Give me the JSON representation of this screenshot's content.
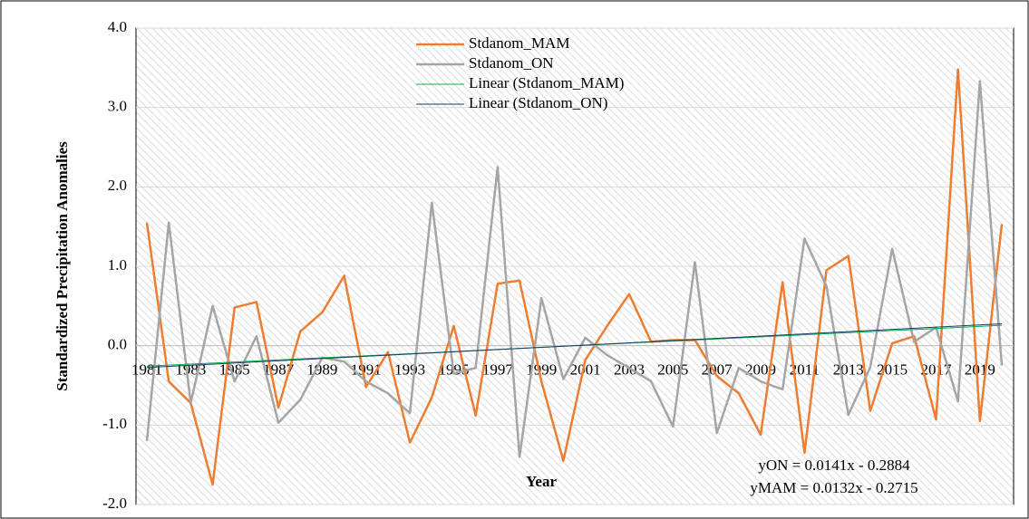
{
  "chart_data": {
    "type": "line",
    "y_label": "Standardized Precipitation Anomalies",
    "x_label": "Year",
    "categories": [
      "1981",
      null,
      "1983",
      null,
      "1985",
      null,
      "1987",
      null,
      "1989",
      null,
      "1991",
      null,
      "1993",
      null,
      "1995",
      null,
      "1997",
      null,
      "1999",
      null,
      "2001",
      null,
      "2003",
      null,
      "2005",
      null,
      "2007",
      null,
      "2009",
      null,
      "2011",
      null,
      "2013",
      null,
      "2015",
      null,
      "2017",
      null,
      "2019",
      null
    ],
    "series": [
      {
        "name": "Stdanom_MAM",
        "color": "#ed7d31",
        "values": [
          1.55,
          -0.45,
          -0.72,
          -1.75,
          0.48,
          0.55,
          -0.78,
          0.18,
          0.42,
          0.88,
          -0.52,
          -0.08,
          -1.22,
          -0.65,
          0.25,
          -0.88,
          0.78,
          0.82,
          -0.45,
          -1.45,
          -0.18,
          0.25,
          0.65,
          0.05,
          0.07,
          0.07,
          -0.38,
          -0.6,
          -1.12,
          0.8,
          -1.35,
          0.95,
          1.13,
          -0.82,
          0.03,
          0.12,
          -0.93,
          3.48,
          -0.95,
          1.53
        ]
      },
      {
        "name": "Stdanom_ON",
        "color": "#a5a5a5",
        "values": [
          -1.2,
          1.55,
          -0.72,
          0.5,
          -0.45,
          0.12,
          -0.97,
          -0.68,
          -0.15,
          -0.2,
          -0.45,
          -0.6,
          -0.85,
          1.8,
          -0.35,
          -0.28,
          2.25,
          -1.4,
          0.6,
          -0.42,
          0.1,
          -0.12,
          -0.28,
          -0.45,
          -1.02,
          1.05,
          -1.1,
          -0.28,
          -0.45,
          -0.55,
          1.35,
          0.75,
          -0.87,
          -0.27,
          1.22,
          0.05,
          0.23,
          -0.7,
          3.33,
          -0.25
        ]
      }
    ],
    "trendlines": [
      {
        "name": "Linear (Stdanom_MAM)",
        "color": "#00b050",
        "slope": 0.0132,
        "intercept": -0.2715
      },
      {
        "name": "Linear (Stdanom_ON)",
        "color": "#203864",
        "slope": 0.0141,
        "intercept": -0.2884
      }
    ],
    "annotations": [
      "yON = 0.0141x - 0.2884",
      "yMAM = 0.0132x - 0.2715"
    ],
    "ylim": [
      -2,
      4
    ],
    "yticks": [
      {
        "value": -2,
        "label": "-2.0"
      },
      {
        "value": -1,
        "label": "-1.0"
      },
      {
        "value": 0,
        "label": "0.0"
      },
      {
        "value": 1,
        "label": "1.0"
      },
      {
        "value": 2,
        "label": "2.0"
      },
      {
        "value": 3,
        "label": "3.0"
      },
      {
        "value": 4,
        "label": "4.0"
      }
    ],
    "grid": true
  }
}
